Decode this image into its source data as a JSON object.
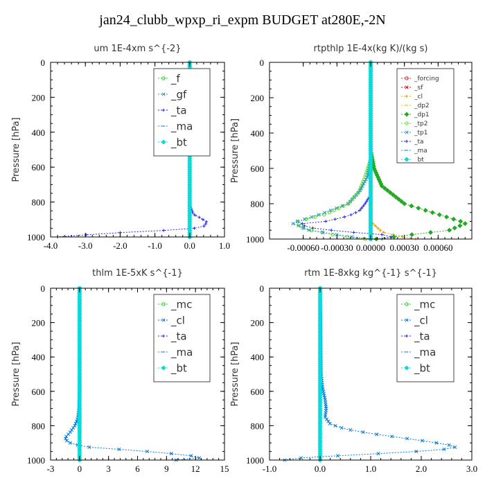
{
  "title": "jan24_clubb_wpxp_ri_expm  BUDGET at280E,-2N",
  "colors": {
    "f": "#22cc22",
    "gf": "#229999",
    "ta": "#2222ee",
    "ma": "#2288ee",
    "bt": "#00dddd",
    "mc": "#22cc22",
    "cl": "#0077dd",
    "forcing": "#cc2222",
    "sf": "#dd0000",
    "cl_rt": "#ee9900",
    "dp2": "#ddcc00",
    "dp1": "#22aa22",
    "tp2": "#66dd22",
    "tp1": "#2299bb"
  },
  "chart_data": [
    {
      "type": "line",
      "title": "um   1E-4xm s^{-2}",
      "ylabel": "Pressure [hPa]",
      "xlim": [
        -4.0,
        1.0
      ],
      "ylim": [
        1000,
        0
      ],
      "xticks": [
        -4.0,
        -3.0,
        -2.0,
        -1.0,
        0.0,
        1.0
      ],
      "xtick_labels": [
        "-4.0",
        "-3.0",
        "-2.0",
        "-1.0",
        "0.0",
        "1.0"
      ],
      "yticks": [
        0,
        200,
        400,
        600,
        800,
        1000
      ],
      "legend": {
        "position": "top-right",
        "entries": [
          "_f",
          "_gf",
          "_ta",
          "_ma",
          "_bt"
        ]
      },
      "series": [
        {
          "name": "_f",
          "color_key": "f",
          "points": [
            [
              0,
              0
            ],
            [
              0,
              1000
            ]
          ]
        },
        {
          "name": "_gf",
          "color_key": "gf",
          "points": [
            [
              0,
              0
            ],
            [
              0,
              1000
            ]
          ]
        },
        {
          "name": "_ta",
          "color_key": "ta",
          "points": [
            [
              0,
              0
            ],
            [
              0.02,
              820
            ],
            [
              0.1,
              870
            ],
            [
              0.3,
              890
            ],
            [
              0.5,
              915
            ],
            [
              0.4,
              940
            ],
            [
              0.0,
              955
            ],
            [
              -1.0,
              965
            ],
            [
              -2.0,
              975
            ],
            [
              -2.8,
              985
            ],
            [
              -3.3,
              992
            ],
            [
              -3.8,
              1000
            ]
          ]
        },
        {
          "name": "_ma",
          "color_key": "ma",
          "points": [
            [
              0,
              0
            ],
            [
              0,
              1000
            ]
          ]
        },
        {
          "name": "_bt",
          "color_key": "bt",
          "points": [
            [
              0,
              0
            ],
            [
              0,
              1000
            ]
          ]
        }
      ]
    },
    {
      "type": "line",
      "title": "rtpthlp   1E-4x(kg K)/(kg s)",
      "ylabel": "Pressure [hPa]",
      "xlim": [
        -0.0009,
        0.0009
      ],
      "ylim": [
        1000,
        0
      ],
      "xticks": [
        -0.0006,
        -0.0003,
        0.0,
        0.0003,
        0.0006
      ],
      "xtick_labels": [
        "-0.00060",
        "-0.00030",
        "0.00000",
        "0.00030",
        "0.00060"
      ],
      "yticks": [
        0,
        200,
        400,
        600,
        800,
        1000
      ],
      "legend": {
        "position": "top-right",
        "entries": [
          "_forcing",
          "_sf",
          "_cl",
          "_dp2",
          "_dp1",
          "_tp2",
          "_tp1",
          "_ta",
          "_ma",
          "_bt"
        ]
      },
      "series": [
        {
          "name": "_forcing",
          "color_key": "forcing",
          "points": [
            [
              0,
              0
            ],
            [
              0,
              1000
            ]
          ]
        },
        {
          "name": "_sf",
          "color_key": "sf",
          "points": [
            [
              0,
              0
            ],
            [
              0,
              1000
            ]
          ]
        },
        {
          "name": "_cl",
          "color_key": "cl_rt",
          "points": [
            [
              0,
              0
            ],
            [
              0,
              900
            ],
            [
              0.0001,
              960
            ],
            [
              0.0003,
              990
            ],
            [
              0.0004,
              1000
            ]
          ]
        },
        {
          "name": "_dp2",
          "color_key": "dp2",
          "points": [
            [
              0,
              0
            ],
            [
              0,
              1000
            ]
          ]
        },
        {
          "name": "_dp1",
          "color_key": "dp1",
          "points": [
            [
              0,
              0
            ],
            [
              0,
              500
            ],
            [
              3e-05,
              600
            ],
            [
              0.0001,
              700
            ],
            [
              0.0003,
              800
            ],
            [
              0.0006,
              860
            ],
            [
              0.00085,
              910
            ],
            [
              0.0007,
              950
            ],
            [
              0.0003,
              980
            ],
            [
              5e-05,
              1000
            ]
          ]
        },
        {
          "name": "_tp2",
          "color_key": "tp2",
          "points": [
            [
              0,
              0
            ],
            [
              0,
              550
            ],
            [
              -5e-05,
              650
            ],
            [
              -0.0001,
              730
            ],
            [
              -0.0002,
              800
            ],
            [
              -0.0004,
              860
            ],
            [
              -0.00065,
              900
            ],
            [
              -0.0006,
              940
            ],
            [
              -0.0003,
              980
            ],
            [
              -5e-05,
              1000
            ]
          ]
        },
        {
          "name": "_tp1",
          "color_key": "tp1",
          "points": [
            [
              0,
              0
            ],
            [
              0,
              550
            ],
            [
              -3e-05,
              650
            ],
            [
              -0.0001,
              730
            ],
            [
              -0.0002,
              800
            ],
            [
              -0.00045,
              860
            ],
            [
              -0.0007,
              910
            ],
            [
              -0.00055,
              950
            ],
            [
              -0.0002,
              985
            ],
            [
              0,
              1000
            ]
          ]
        },
        {
          "name": "_ta",
          "color_key": "ta",
          "points": [
            [
              0,
              0
            ],
            [
              0,
              750
            ],
            [
              -5e-05,
              800
            ],
            [
              -0.0001,
              840
            ],
            [
              -0.0002,
              870
            ],
            [
              -0.0004,
              900
            ],
            [
              -0.00065,
              915
            ],
            [
              -0.0005,
              940
            ],
            [
              -0.0002,
              960
            ],
            [
              0.0001,
              975
            ],
            [
              0.0002,
              990
            ],
            [
              0.0001,
              1000
            ]
          ]
        },
        {
          "name": "_ma",
          "color_key": "ma",
          "points": [
            [
              0,
              0
            ],
            [
              0,
              1000
            ]
          ]
        },
        {
          "name": "_bt",
          "color_key": "bt",
          "points": [
            [
              0,
              0
            ],
            [
              0,
              1000
            ]
          ]
        }
      ]
    },
    {
      "type": "line",
      "title": "thlm   1E-5xK s^{-1}",
      "ylabel": "Pressure [hPa]",
      "xlim": [
        -3,
        15
      ],
      "ylim": [
        1000,
        0
      ],
      "xticks": [
        -3,
        0,
        3,
        6,
        9,
        12,
        15
      ],
      "xtick_labels": [
        "-3",
        "0",
        "3",
        "6",
        "9",
        "12",
        "15"
      ],
      "yticks": [
        0,
        200,
        400,
        600,
        800,
        1000
      ],
      "legend": {
        "position": "top-right",
        "entries": [
          "_mc",
          "_cl",
          "_ta",
          "_ma",
          "_bt"
        ]
      },
      "series": [
        {
          "name": "_mc",
          "color_key": "mc",
          "points": [
            [
              0,
              0
            ],
            [
              0,
              1000
            ]
          ]
        },
        {
          "name": "_cl",
          "color_key": "cl",
          "points": [
            [
              0,
              0
            ],
            [
              0,
              600
            ],
            [
              -0.05,
              700
            ],
            [
              -0.2,
              760
            ],
            [
              -0.5,
              800
            ],
            [
              -1.0,
              840
            ],
            [
              -1.5,
              870
            ],
            [
              -1.3,
              890
            ],
            [
              -0.8,
              905
            ],
            [
              0,
              915
            ],
            [
              1.0,
              925
            ],
            [
              3.5,
              935
            ],
            [
              7.0,
              950
            ],
            [
              10.0,
              965
            ],
            [
              12.0,
              978
            ],
            [
              12.5,
              990
            ],
            [
              10.0,
              1000
            ]
          ]
        },
        {
          "name": "_ta",
          "color_key": "ta",
          "points": [
            [
              0,
              0
            ],
            [
              0,
              1000
            ]
          ]
        },
        {
          "name": "_ma",
          "color_key": "ma",
          "points": [
            [
              0,
              0
            ],
            [
              0,
              1000
            ]
          ]
        },
        {
          "name": "_bt",
          "color_key": "bt",
          "points": [
            [
              0,
              0
            ],
            [
              0,
              1000
            ]
          ]
        }
      ]
    },
    {
      "type": "line",
      "title": "rtm   1E-8xkg kg^{-1} s^{-1}",
      "ylabel": "Pressure [hPa]",
      "xlim": [
        -1.0,
        3.0
      ],
      "ylim": [
        1000,
        0
      ],
      "xticks": [
        -1.0,
        0.0,
        1.0,
        2.0,
        3.0
      ],
      "xtick_labels": [
        "-1.0",
        "0.0",
        "1.0",
        "2.0",
        "3.0"
      ],
      "yticks": [
        0,
        200,
        400,
        600,
        800,
        1000
      ],
      "legend": {
        "position": "top-right",
        "entries": [
          "_mc",
          "_cl",
          "_ta",
          "_ma",
          "_bt"
        ]
      },
      "series": [
        {
          "name": "_mc",
          "color_key": "mc",
          "points": [
            [
              0,
              0
            ],
            [
              0,
              1000
            ]
          ]
        },
        {
          "name": "_cl",
          "color_key": "cl",
          "points": [
            [
              0,
              0
            ],
            [
              0.02,
              500
            ],
            [
              0.05,
              580
            ],
            [
              0.1,
              650
            ],
            [
              0.12,
              700
            ],
            [
              0.1,
              750
            ],
            [
              0.2,
              790
            ],
            [
              0.5,
              820
            ],
            [
              1.0,
              845
            ],
            [
              1.6,
              870
            ],
            [
              2.2,
              895
            ],
            [
              2.6,
              915
            ],
            [
              2.7,
              930
            ],
            [
              2.2,
              945
            ],
            [
              1.0,
              965
            ],
            [
              -0.3,
              985
            ],
            [
              -0.6,
              995
            ],
            [
              -0.7,
              1000
            ]
          ]
        },
        {
          "name": "_ta",
          "color_key": "ta",
          "points": [
            [
              0,
              0
            ],
            [
              0,
              1000
            ]
          ]
        },
        {
          "name": "_ma",
          "color_key": "ma",
          "points": [
            [
              0,
              0
            ],
            [
              0,
              1000
            ]
          ]
        },
        {
          "name": "_bt",
          "color_key": "bt",
          "points": [
            [
              0,
              0
            ],
            [
              0,
              1000
            ]
          ]
        }
      ]
    }
  ]
}
